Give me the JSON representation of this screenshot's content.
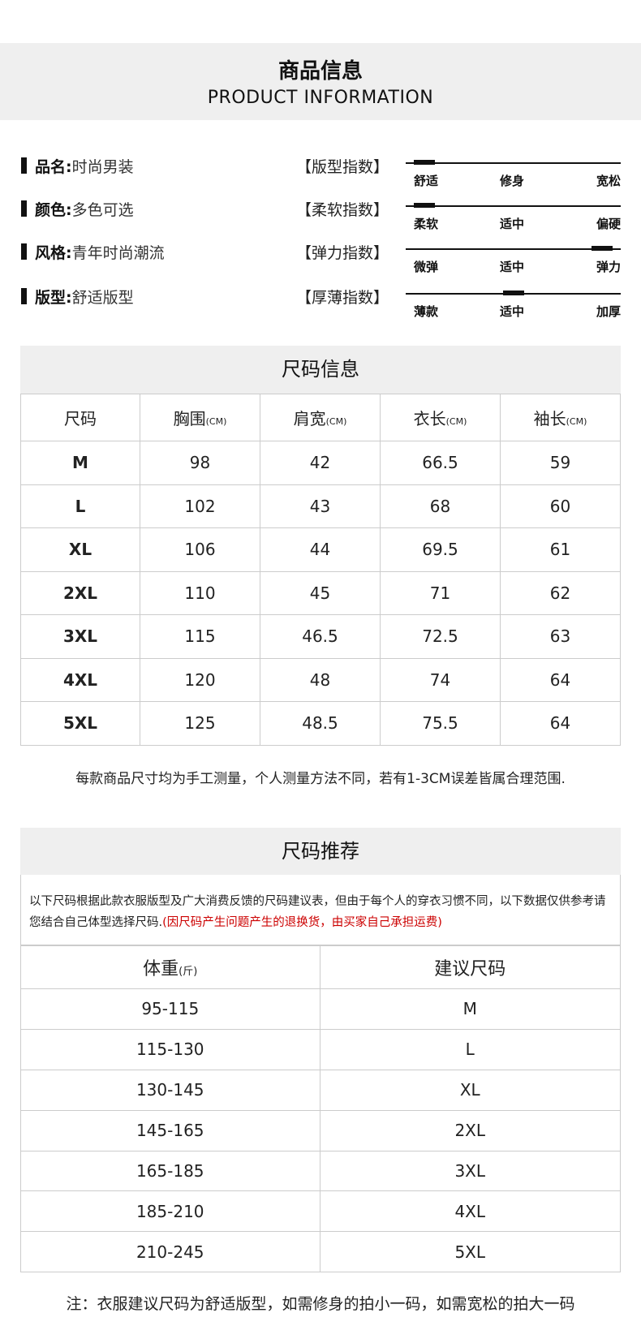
{
  "header": {
    "title_cn": "商品信息",
    "title_en": "PRODUCT INFORMATION"
  },
  "info": [
    {
      "label": "品名:",
      "value": "时尚男装",
      "index": "【版型指数】",
      "scale": [
        "舒适",
        "修身",
        "宽松"
      ],
      "level": 0
    },
    {
      "label": "颜色:",
      "value": "多色可选",
      "index": "【柔软指数】",
      "scale": [
        "柔软",
        "适中",
        "偏硬"
      ],
      "level": 0
    },
    {
      "label": "风格:",
      "value": "青年时尚潮流",
      "index": "【弹力指数】",
      "scale": [
        "微弹",
        "适中",
        "弹力"
      ],
      "level": 1
    },
    {
      "label": "版型:",
      "value": "舒适版型",
      "index": "【厚薄指数】",
      "scale": [
        "薄款",
        "适中",
        "加厚"
      ],
      "level": 0.5
    }
  ],
  "size_info": {
    "title": "尺码信息",
    "headers": [
      {
        "main": "尺码",
        "unit": ""
      },
      {
        "main": "胸围",
        "unit": "(CM)"
      },
      {
        "main": "肩宽",
        "unit": "(CM)"
      },
      {
        "main": "衣长",
        "unit": "(CM)"
      },
      {
        "main": "袖长",
        "unit": "(CM)"
      }
    ],
    "rows": [
      [
        "M",
        "98",
        "42",
        "66.5",
        "59"
      ],
      [
        "L",
        "102",
        "43",
        "68",
        "60"
      ],
      [
        "XL",
        "106",
        "44",
        "69.5",
        "61"
      ],
      [
        "2XL",
        "110",
        "45",
        "71",
        "62"
      ],
      [
        "3XL",
        "115",
        "46.5",
        "72.5",
        "63"
      ],
      [
        "4XL",
        "120",
        "48",
        "74",
        "64"
      ],
      [
        "5XL",
        "125",
        "48.5",
        "75.5",
        "64"
      ]
    ],
    "note": "每款商品尺寸均为手工测量，个人测量方法不同，若有1-3CM误差皆属合理范围."
  },
  "size_rec": {
    "title": "尺码推荐",
    "desc": "以下尺码根据此款衣服版型及广大消费反馈的尺码建议表，但由于每个人的穿衣习惯不同，以下数据仅供参考请您结合自己体型选择尺码.",
    "desc_red": "(因尺码产生问题产生的退换货，由买家自己承担运费)",
    "headers": [
      {
        "main": "体重",
        "unit": "(斤)"
      },
      {
        "main": "建议尺码",
        "unit": ""
      }
    ],
    "rows": [
      [
        "95-115",
        "M"
      ],
      [
        "115-130",
        "L"
      ],
      [
        "130-145",
        "XL"
      ],
      [
        "145-165",
        "2XL"
      ],
      [
        "165-185",
        "3XL"
      ],
      [
        "185-210",
        "4XL"
      ],
      [
        "210-245",
        "5XL"
      ]
    ],
    "footer": "注：衣服建议尺码为舒适版型，如需修身的拍小一码，如需宽松的拍大一码"
  }
}
